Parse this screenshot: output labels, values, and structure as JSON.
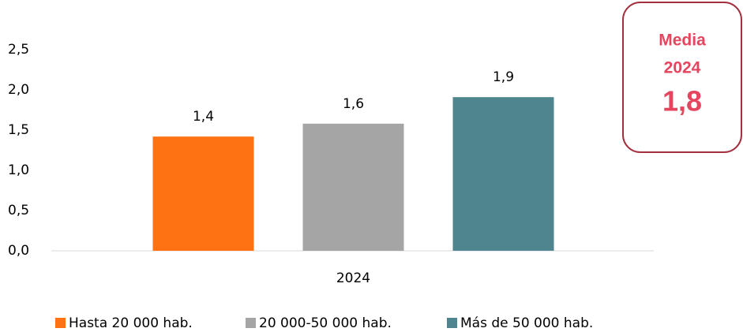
{
  "chart_data": {
    "type": "bar",
    "categories": [
      "2024"
    ],
    "series": [
      {
        "name": "Hasta 20 000 hab.",
        "color": "#ff7213",
        "values": [
          1.42
        ],
        "value_labels": [
          "1,4"
        ]
      },
      {
        "name": "20 000-50 000 hab.",
        "color": "#a5a5a5",
        "values": [
          1.58
        ],
        "value_labels": [
          "1,6"
        ]
      },
      {
        "name": "Más de 50 000 hab.",
        "color": "#4e858e",
        "values": [
          1.91
        ],
        "value_labels": [
          "1,9"
        ]
      }
    ],
    "ylim": [
      0,
      2.5
    ],
    "yticks": [
      {
        "value": 0,
        "label": "0,0"
      },
      {
        "value": 0.5,
        "label": "0,5"
      },
      {
        "value": 1,
        "label": "1,0"
      },
      {
        "value": 1.5,
        "label": "1,5"
      },
      {
        "value": 2,
        "label": "2,0"
      },
      {
        "value": 2.5,
        "label": "2,5"
      }
    ],
    "grid": false,
    "legend": "bottom",
    "annotation": [
      "Media",
      "2024",
      "1,8"
    ]
  }
}
